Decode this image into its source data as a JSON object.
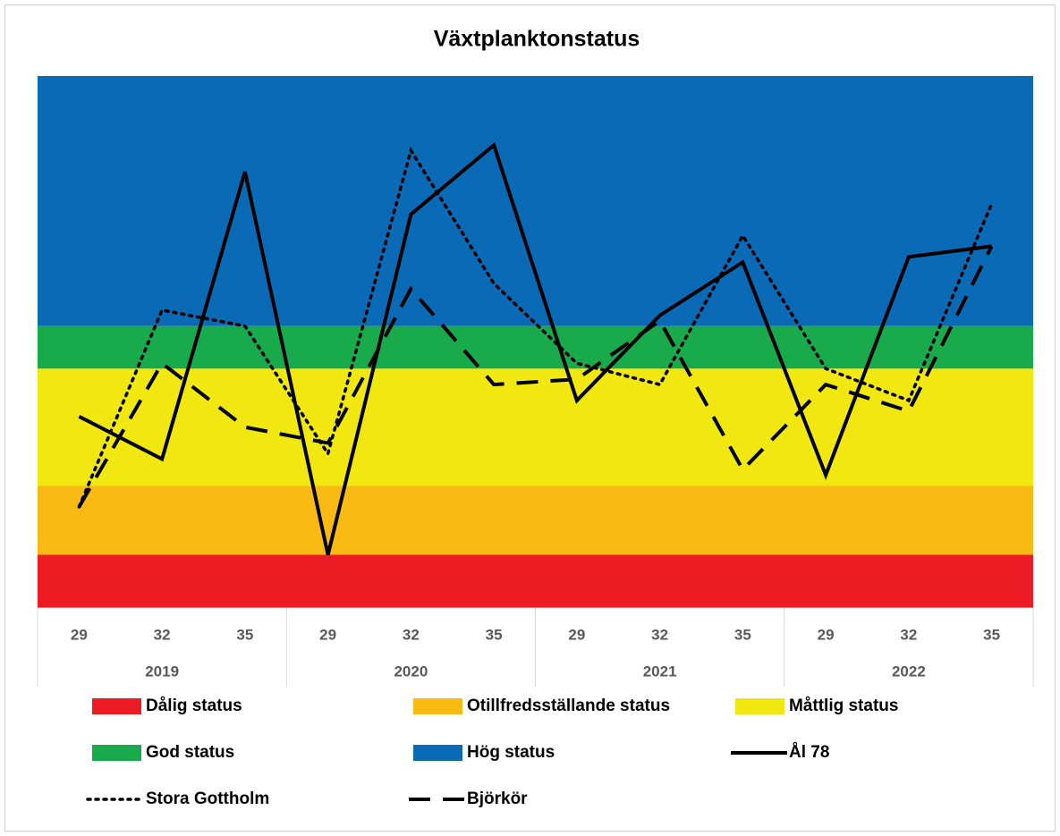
{
  "chart_data": {
    "type": "line",
    "title": "Växtplanktonstatus",
    "categories": [
      "29",
      "32",
      "35",
      "29",
      "32",
      "35",
      "29",
      "32",
      "35",
      "29",
      "32",
      "35"
    ],
    "years": [
      "2019",
      "2020",
      "2021",
      "2022"
    ],
    "ylim": [
      0,
      1
    ],
    "bands": [
      {
        "name": "Dålig status",
        "color": "#ED1C24",
        "range": [
          0,
          0.1
        ]
      },
      {
        "name": "Otillfredsställande status",
        "color": "#FABA14",
        "range": [
          0.1,
          0.23
        ]
      },
      {
        "name": "Måttlig status",
        "color": "#F2E811",
        "range": [
          0.23,
          0.45
        ]
      },
      {
        "name": "God status",
        "color": "#19AB4B",
        "range": [
          0.45,
          0.53
        ]
      },
      {
        "name": "Hög status",
        "color": "#0A6AB5",
        "range": [
          0.53,
          1
        ]
      }
    ],
    "series": [
      {
        "name": "Ål 78",
        "color": "#000000",
        "dash": "solid",
        "values": [
          0.36,
          0.28,
          0.82,
          0.1,
          0.74,
          0.87,
          0.39,
          0.55,
          0.65,
          0.25,
          0.66,
          0.68
        ]
      },
      {
        "name": "Stora Gottholm",
        "color": "#000000",
        "dash": "dotted",
        "values": [
          0.19,
          0.56,
          0.53,
          0.29,
          0.86,
          0.61,
          0.46,
          0.42,
          0.7,
          0.45,
          0.39,
          0.76
        ]
      },
      {
        "name": "Björkör",
        "color": "#000000",
        "dash": "dashed",
        "values": [
          0.19,
          0.46,
          0.34,
          0.31,
          0.6,
          0.42,
          0.43,
          0.54,
          0.26,
          0.42,
          0.37,
          0.68
        ]
      }
    ]
  }
}
